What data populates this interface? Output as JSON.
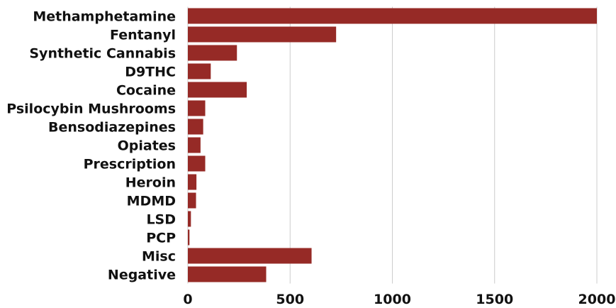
{
  "chart_data": {
    "type": "bar",
    "orientation": "horizontal",
    "title": "",
    "xlabel": "",
    "ylabel": "",
    "categories": [
      "Methamphetamine",
      "Fentanyl",
      "Synthetic Cannabis",
      "D9THC",
      "Cocaine",
      "Psilocybin Mushrooms",
      "Bensodiazepines",
      "Opiates",
      "Prescription",
      "Heroin",
      "MDMD",
      "LSD",
      "PCP",
      "Misc",
      "Negative"
    ],
    "values": [
      2000,
      725,
      240,
      112,
      288,
      85,
      75,
      62,
      85,
      42,
      40,
      15,
      8,
      605,
      383
    ],
    "xlim": [
      0,
      2000
    ],
    "xticks": [
      "0",
      "500",
      "1000",
      "1500",
      "2000"
    ],
    "xtick_values": [
      0,
      500,
      1000,
      1500,
      2000
    ],
    "grid": "vertical",
    "legend": "none",
    "bar_color": "#962a26",
    "grid_color": "#cccccc"
  }
}
